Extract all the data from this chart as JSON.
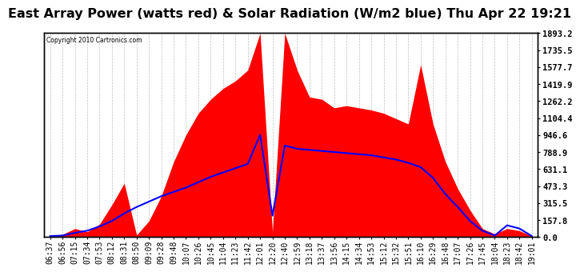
{
  "title": "East Array Power (watts red) & Solar Radiation (W/m2 blue) Thu Apr 22 19:21",
  "copyright": "Copyright 2010 Cartronics.com",
  "ytick_values": [
    0.0,
    157.8,
    315.5,
    473.3,
    631.1,
    788.9,
    946.6,
    1104.4,
    1262.2,
    1419.9,
    1577.7,
    1735.5,
    1893.2
  ],
  "ymax": 1893.2,
  "ymin": 0.0,
  "xtick_labels": [
    "06:37",
    "06:56",
    "07:15",
    "07:34",
    "07:53",
    "08:12",
    "08:31",
    "08:50",
    "09:09",
    "09:28",
    "09:48",
    "10:07",
    "10:26",
    "10:45",
    "11:04",
    "11:23",
    "11:42",
    "12:01",
    "12:20",
    "12:40",
    "12:59",
    "13:18",
    "13:37",
    "13:56",
    "14:15",
    "14:34",
    "14:53",
    "15:12",
    "15:32",
    "15:51",
    "16:10",
    "16:29",
    "16:48",
    "17:07",
    "17:26",
    "17:45",
    "18:04",
    "18:23",
    "18:42",
    "19:01"
  ],
  "bg_color": "#ffffff",
  "red_color": "#ff0000",
  "blue_color": "#0000ff",
  "grid_color": "#c0c0c0",
  "title_fontsize": 11.5,
  "tick_fontsize": 7.0,
  "power_data": [
    15,
    25,
    80,
    50,
    120,
    300,
    500,
    20,
    150,
    380,
    700,
    950,
    1150,
    1280,
    1380,
    1450,
    1550,
    1893,
    50,
    1893,
    1550,
    1300,
    1280,
    1200,
    1220,
    1200,
    1180,
    1150,
    1100,
    1050,
    1600,
    1050,
    700,
    450,
    250,
    80,
    30,
    80,
    60,
    10
  ],
  "solar_data": [
    10,
    15,
    40,
    60,
    100,
    150,
    220,
    280,
    330,
    380,
    420,
    460,
    510,
    560,
    600,
    640,
    680,
    950,
    200,
    850,
    820,
    810,
    800,
    790,
    780,
    770,
    760,
    740,
    720,
    690,
    650,
    550,
    400,
    280,
    150,
    60,
    15,
    110,
    80,
    10
  ]
}
